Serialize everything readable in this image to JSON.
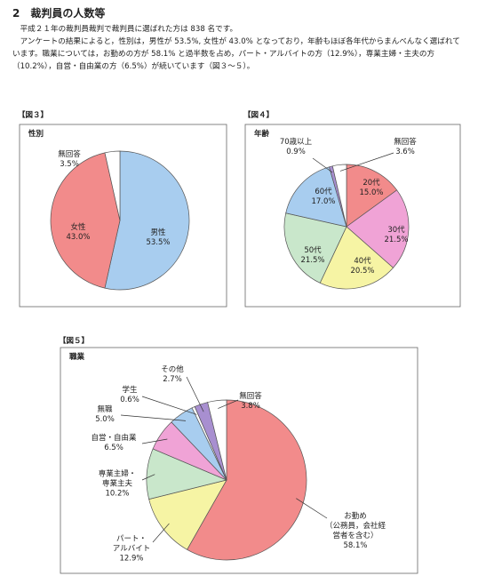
{
  "section": {
    "heading": "2　裁判員の人数等",
    "paragraphs": [
      "平成２１年の裁判員裁判で裁判員に選ばれた方は 838 名です。",
      "アンケートの結果によると，性別は，男性が 53.5%, 女性が 43.0% となっており，年齢もほぼ各年代からまんべんなく選ばれています。職業については，お勤めの方が 58.1% と過半数を占め，パート・アルバイトの方（12.9%），専業主婦・主夫の方（10.2%），自営・自由業の方（6.5%）が続いています（図３～５）。"
    ]
  },
  "chart_data": [
    {
      "type": "pie",
      "figure_label": "【図３】",
      "title": "性別",
      "categories": [
        "男性",
        "女性",
        "無回答"
      ],
      "values": [
        53.5,
        43.0,
        3.5
      ],
      "value_labels": [
        "53.5%",
        "43.0%",
        "3.5%"
      ],
      "colors": [
        "#a8cdef",
        "#f28b8b",
        "#ffffff"
      ]
    },
    {
      "type": "pie",
      "figure_label": "【図４】",
      "title": "年齢",
      "categories": [
        "20代",
        "30代",
        "40代",
        "50代",
        "60代",
        "70歳以上",
        "無回答"
      ],
      "values": [
        15.0,
        21.5,
        20.5,
        21.5,
        17.0,
        0.9,
        3.6
      ],
      "value_labels": [
        "15.0%",
        "21.5%",
        "20.5%",
        "21.5%",
        "17.0%",
        "0.9%",
        "3.6%"
      ],
      "colors": [
        "#f28b8b",
        "#f0a3d6",
        "#f6f4a4",
        "#c9e7cb",
        "#a8cdef",
        "#a88fd0",
        "#ffffff"
      ]
    },
    {
      "type": "pie",
      "figure_label": "【図５】",
      "title": "職業",
      "categories": [
        "お勤め\n（公務員，会社経\n営者を含む）",
        "パート・\nアルバイト",
        "専業主婦・\n専業主夫",
        "自営・自由業",
        "無職",
        "学生",
        "その他",
        "無回答"
      ],
      "values": [
        58.1,
        12.9,
        10.2,
        6.5,
        5.0,
        0.6,
        2.7,
        3.8
      ],
      "value_labels": [
        "58.1%",
        "12.9%",
        "10.2%",
        "6.5%",
        "5.0%",
        "0.6%",
        "2.7%",
        "3.8%"
      ],
      "colors": [
        "#f28b8b",
        "#f6f4a4",
        "#c9e7cb",
        "#f0a3d6",
        "#a8cdef",
        "#ffffff",
        "#a88fd0",
        "#ffffff"
      ]
    }
  ]
}
